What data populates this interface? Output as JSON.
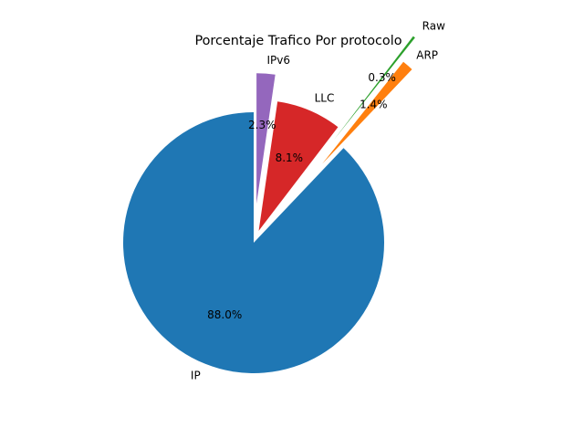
{
  "chart_data": {
    "type": "pie",
    "title": "Porcentaje Trafico Por protocolo",
    "categories": [
      "IP",
      "ARP",
      "Raw",
      "LLC",
      "IPv6"
    ],
    "values": [
      88.0,
      1.4,
      0.3,
      8.1,
      2.3
    ],
    "percent_labels": [
      "88.0%",
      "1.4%",
      "0.3%",
      "8.1%",
      "2.3%"
    ],
    "explode": [
      0,
      0.8,
      1.0,
      0.1,
      0.3
    ],
    "start_angle_deg": 90,
    "direction": "counterclockwise",
    "colors": [
      "#1f77b4",
      "#ff7f0e",
      "#2ca02c",
      "#d62728",
      "#9467bd"
    ],
    "legend": "none",
    "grid": false
  }
}
